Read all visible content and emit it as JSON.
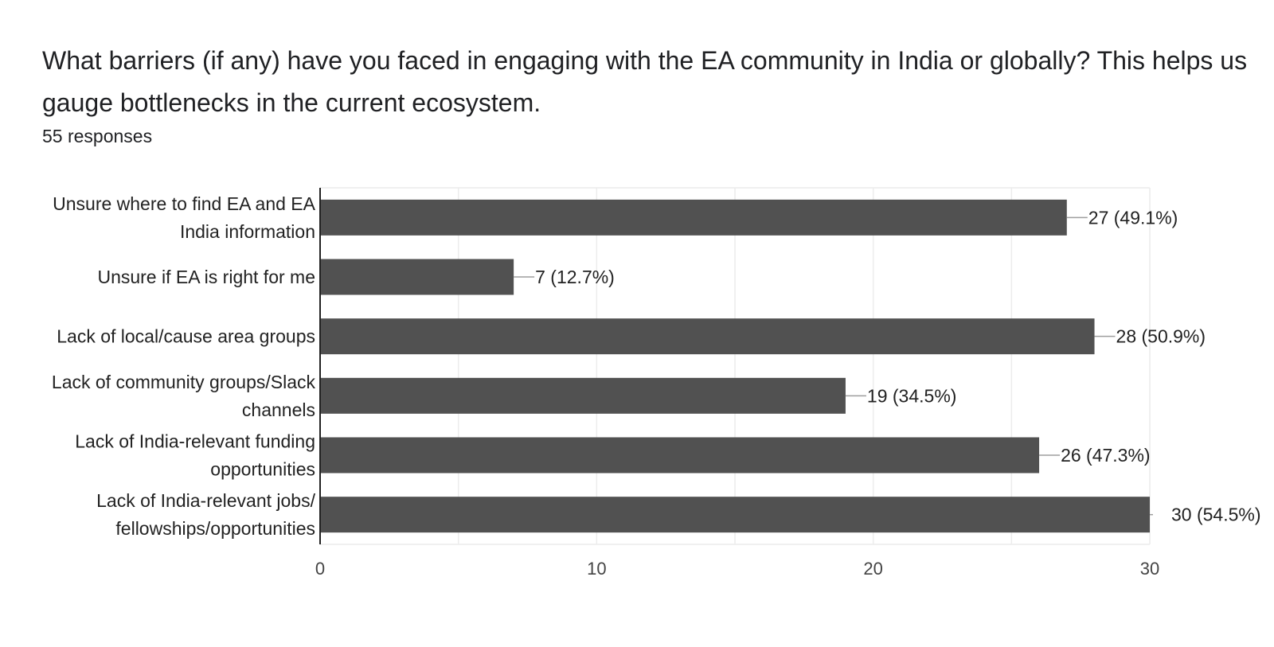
{
  "question": {
    "title": "What barriers (if any) have you faced in engaging with the EA community in India or globally? This helps us gauge bottlenecks in the current ecosystem.",
    "responses_label": "55 responses"
  },
  "chart_data": {
    "type": "bar",
    "orientation": "horizontal",
    "title": "",
    "xlabel": "",
    "ylabel": "",
    "categories": [
      [
        "Unsure where to find EA and EA",
        "India information"
      ],
      [
        "Unsure if EA is right for me"
      ],
      [
        "Lack of local/cause area groups"
      ],
      [
        "Lack of community groups/Slack",
        "channels"
      ],
      [
        "Lack of India-relevant funding",
        "opportunities"
      ],
      [
        "Lack of India-relevant jobs/",
        "fellowships/opportunities"
      ]
    ],
    "values": [
      27,
      7,
      28,
      19,
      26,
      30
    ],
    "value_labels": [
      "27 (49.1%)",
      "7 (12.7%)",
      "28 (50.9%)",
      "19 (34.5%)",
      "26 (47.3%)",
      "30 (54.5%)"
    ],
    "xlim": [
      0,
      30
    ],
    "xticks": [
      0,
      10,
      20,
      30
    ],
    "xtick_labels": [
      "0",
      "10",
      "20",
      "30"
    ],
    "minor_grid_step": 5,
    "grid": true,
    "legend": "none",
    "bar_color": "#515151",
    "grid_color": "#ececec",
    "axis_color": "#222222"
  }
}
